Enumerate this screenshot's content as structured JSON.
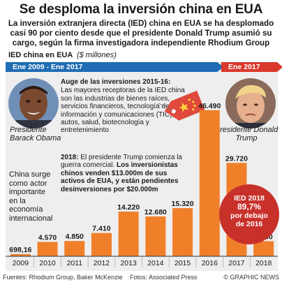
{
  "title": "Se desploma la inversión china en EUA",
  "subtitle": "La inversión extranjera directa (IED) china en EUA se ha desplomado casi 90 por ciento desde que el presidente Donald Trump asumió su cargo, según la firma investigadora independiente Rhodium Group",
  "ied_label": "IED china en EUA",
  "ied_units": "($ millones)",
  "period_obama": "Ene 2009 - Ene 2017",
  "period_trump": "Ene 2017",
  "obama_caption": "Presidente Barack Obama",
  "trump_caption": "Presidente Donald Trump",
  "china_note": "China surge como actor importante en la economía internacional",
  "boom_box": {
    "head": "Auge de las inversiones 2015-16:",
    "body": "Las mayores receptoras de la IED china son las industrias de bienes raíces, servicios financieros, tecnología de la información y comunicaciones (TIC), autos, salud, biotecnología y entretenimiento"
  },
  "trump_box": {
    "lead": "2018:",
    "plain": " El presidente Trump comienza la guerra comercial. ",
    "bold": "Los inversionistas chinos venden $13.000m de sus activos de EUA, y están pendientes desinversiones por $20.000m"
  },
  "badge": {
    "line1": "IED 2018",
    "line2": "89,7%",
    "line3": "por debajo",
    "line4": "de 2016"
  },
  "footer": {
    "sources": "Fuentes: Rhodium Group, Baker McKenzie",
    "photos": "Fotos: Associated Press",
    "credit": "© GRAPHIC NEWS"
  },
  "colors": {
    "bar": "#f07f2a",
    "obama_band": "#1f6cb4",
    "trump_band": "#d9382c",
    "badge": "#c8302a"
  },
  "chart_data": {
    "type": "bar",
    "categories": [
      "2009",
      "2010",
      "2011",
      "2012",
      "2013",
      "2014",
      "2015",
      "2016",
      "2017",
      "2018"
    ],
    "values": [
      698.16,
      4570,
      4850,
      7410,
      14220,
      12680,
      15320,
      46490,
      29720,
      4800
    ],
    "value_labels": [
      "698,16",
      "4.570",
      "4.850",
      "7.410",
      "14.220",
      "12.680",
      "15.320",
      "46.490",
      "29.720",
      "4.800"
    ],
    "ylabel": "IED china en EUA ($ millones)",
    "ylim": [
      0,
      50000
    ],
    "grid": false,
    "legend": "none"
  }
}
